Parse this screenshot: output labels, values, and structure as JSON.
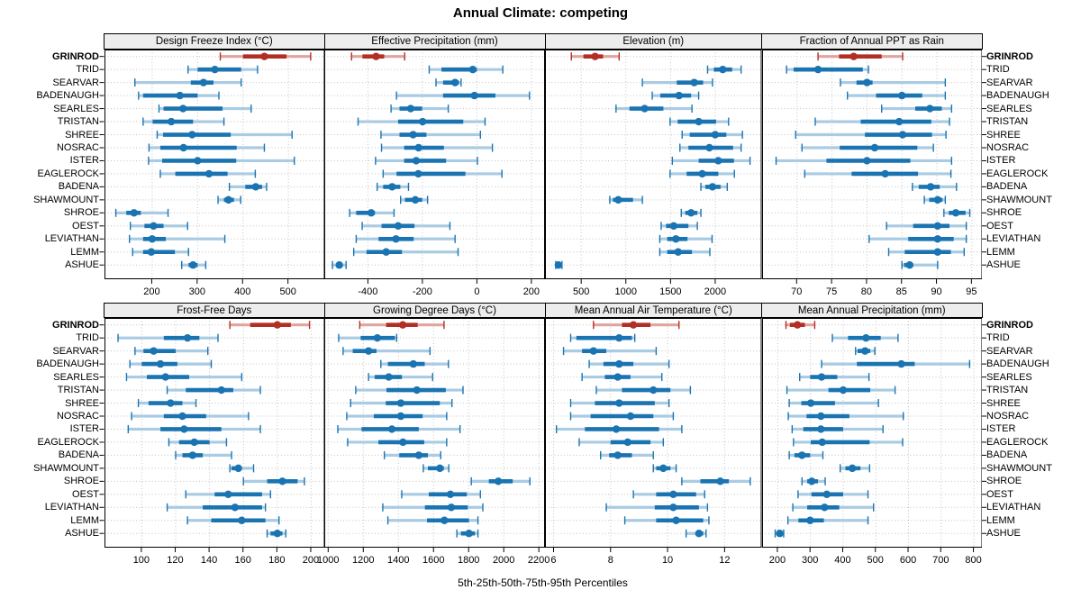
{
  "title": "Annual Climate: competing",
  "xlabel": "5th-25th-50th-75th-95th Percentiles",
  "colors": {
    "highlight": "#b22f26",
    "highlight_light": "#e0a49e",
    "normal": "#1a74b2",
    "normal_light": "#a9cbe3",
    "grid": "#c4c4c4",
    "strip_bg": "#ededed",
    "border": "#000000"
  },
  "chart_data": {
    "type": "dotplot_percentiles",
    "layout": "2x4 lattice, dotted grid, no legend, station labels on both sides",
    "percentiles": [
      5,
      25,
      50,
      75,
      95
    ],
    "highlight_station": "GRINROD",
    "stations": [
      "GRINROD",
      "TRID",
      "SEARVAR",
      "BADENAUGH",
      "SEARLES",
      "TRISTAN",
      "SHREE",
      "NOSRAC",
      "ISTER",
      "EAGLEROCK",
      "BADENA",
      "SHAWMOUNT",
      "SHROE",
      "OEST",
      "LEVIATHAN",
      "LEMM",
      "ASHUE"
    ],
    "panels": [
      {
        "title": "Design Freeze Index (°C)",
        "xlim": [
          95,
          580
        ],
        "ticks": [
          200,
          300,
          400,
          500
        ],
        "values": [
          [
            350,
            400,
            447,
            496,
            549
          ],
          [
            279,
            300,
            338,
            396,
            432
          ],
          [
            162,
            285,
            313,
            335,
            396
          ],
          [
            170,
            180,
            261,
            300,
            347
          ],
          [
            215,
            225,
            268,
            355,
            418
          ],
          [
            180,
            201,
            242,
            290,
            358
          ],
          [
            211,
            224,
            288,
            373,
            508
          ],
          [
            193,
            218,
            269,
            386,
            447
          ],
          [
            192,
            222,
            300,
            385,
            513
          ],
          [
            218,
            251,
            325,
            366,
            427
          ],
          [
            370,
            405,
            428,
            442,
            452
          ],
          [
            345,
            358,
            368,
            380,
            395
          ],
          [
            120,
            143,
            160,
            175,
            235
          ],
          [
            152,
            183,
            203,
            225,
            278
          ],
          [
            150,
            180,
            200,
            230,
            360
          ],
          [
            157,
            180,
            198,
            250,
            280
          ],
          [
            265,
            280,
            290,
            300,
            318
          ]
        ]
      },
      {
        "title": "Effective Precipitation (mm)",
        "xlim": [
          -560,
          250
        ],
        "ticks": [
          -400,
          -200,
          0,
          200
        ],
        "values": [
          [
            -460,
            -420,
            -370,
            -340,
            -265
          ],
          [
            -175,
            -130,
            -15,
            0,
            95
          ],
          [
            -150,
            -124,
            -80,
            -66,
            -58
          ],
          [
            -295,
            -124,
            -9,
            68,
            193
          ],
          [
            -315,
            -284,
            -243,
            -201,
            -105
          ],
          [
            -436,
            -289,
            -199,
            -50,
            30
          ],
          [
            -352,
            -284,
            -234,
            -185,
            13
          ],
          [
            -350,
            -267,
            -214,
            -121,
            57
          ],
          [
            -372,
            -267,
            -223,
            -113,
            2
          ],
          [
            -344,
            -295,
            -215,
            -42,
            92
          ],
          [
            -366,
            -344,
            -311,
            -281,
            -251
          ],
          [
            -280,
            -264,
            -226,
            -201,
            -181
          ],
          [
            -467,
            -443,
            -388,
            -374,
            -304
          ],
          [
            -421,
            -350,
            -289,
            -229,
            -99
          ],
          [
            -443,
            -361,
            -297,
            -232,
            -80
          ],
          [
            -452,
            -405,
            -333,
            -275,
            -69
          ],
          [
            -530,
            -515,
            -505,
            -495,
            -480
          ]
        ]
      },
      {
        "title": "Elevation (m)",
        "xlim": [
          95,
          2520
        ],
        "ticks": [
          500,
          1000,
          1500,
          2000
        ],
        "values": [
          [
            390,
            525,
            655,
            745,
            925
          ],
          [
            1915,
            1985,
            2085,
            2190,
            2290
          ],
          [
            1185,
            1570,
            1765,
            1865,
            1970
          ],
          [
            1295,
            1385,
            1595,
            1730,
            1815
          ],
          [
            890,
            1040,
            1210,
            1420,
            1740
          ],
          [
            1495,
            1580,
            1815,
            2010,
            2150
          ],
          [
            1630,
            1715,
            2000,
            2125,
            2305
          ],
          [
            1605,
            1700,
            1935,
            2200,
            2290
          ],
          [
            1520,
            1815,
            2035,
            2210,
            2390
          ],
          [
            1495,
            1680,
            1855,
            2035,
            2215
          ],
          [
            1840,
            1890,
            1970,
            2060,
            2135
          ],
          [
            820,
            855,
            915,
            1080,
            1185
          ],
          [
            1620,
            1665,
            1730,
            1800,
            1840
          ],
          [
            1395,
            1450,
            1535,
            1700,
            1800
          ],
          [
            1380,
            1463,
            1560,
            1690,
            1965
          ],
          [
            1380,
            1463,
            1585,
            1740,
            1940
          ],
          [
            215,
            230,
            245,
            262,
            285
          ]
        ]
      },
      {
        "title": "Fraction of Annual PPT as Rain",
        "xlim": [
          65,
          96.5
        ],
        "ticks": [
          70,
          75,
          80,
          85,
          90,
          95
        ],
        "values": [
          [
            73.0,
            76.0,
            78.1,
            82.1,
            85.1
          ],
          [
            68.5,
            69.5,
            73.0,
            79.4,
            80.2
          ],
          [
            76.2,
            78.5,
            80.0,
            80.8,
            91.2
          ],
          [
            77.2,
            81.3,
            85.0,
            87.9,
            91.2
          ],
          [
            82.1,
            86.9,
            89.0,
            90.7,
            92.1
          ],
          [
            72.6,
            79.1,
            84.6,
            89.2,
            91.8
          ],
          [
            69.8,
            79.7,
            85.1,
            89.3,
            91.3
          ],
          [
            70.7,
            76.1,
            81.1,
            87.2,
            89.5
          ],
          [
            67.0,
            74.2,
            80.0,
            86.2,
            92.1
          ],
          [
            71.1,
            77.8,
            82.6,
            87.3,
            92.0
          ],
          [
            86.5,
            87.4,
            89.1,
            90.4,
            92.8
          ],
          [
            88.2,
            88.9,
            90.1,
            90.8,
            91.2
          ],
          [
            91.0,
            91.7,
            92.7,
            94.1,
            94.7
          ],
          [
            82.8,
            86.6,
            90.1,
            91.8,
            94.2
          ],
          [
            80.3,
            85.9,
            90.1,
            92.4,
            94.2
          ],
          [
            83.1,
            85.4,
            90.1,
            92.0,
            93.9
          ],
          [
            85.0,
            85.3,
            86.1,
            86.6,
            90.1
          ]
        ]
      },
      {
        "title": "Frost-Free Days",
        "xlim": [
          78,
          208
        ],
        "ticks": [
          100,
          120,
          140,
          160,
          180,
          200
        ],
        "values": [
          [
            152,
            164,
            180,
            188,
            199
          ],
          [
            86,
            113,
            127,
            134,
            145
          ],
          [
            96,
            101,
            107,
            120,
            139
          ],
          [
            93,
            100,
            111,
            121,
            141
          ],
          [
            91,
            103,
            114,
            128,
            159
          ],
          [
            115,
            126,
            147,
            154,
            170
          ],
          [
            98,
            104,
            117,
            124,
            132
          ],
          [
            94,
            113,
            124,
            138,
            163
          ],
          [
            92,
            111,
            125,
            147,
            170
          ],
          [
            116,
            122,
            131,
            140,
            150
          ],
          [
            120,
            124,
            130,
            136,
            153
          ],
          [
            152,
            153,
            157,
            159,
            166
          ],
          [
            160,
            174,
            183,
            192,
            196
          ],
          [
            126,
            143,
            151,
            171,
            176
          ],
          [
            115,
            136,
            155,
            171,
            173
          ],
          [
            127,
            141,
            159,
            173,
            181
          ],
          [
            174,
            176,
            180,
            183,
            185
          ]
        ]
      },
      {
        "title": "Growing Degree Days (°C)",
        "xlim": [
          978,
          2235
        ],
        "ticks": [
          1000,
          1200,
          1400,
          1600,
          1800,
          2000,
          2200
        ],
        "values": [
          [
            1180,
            1330,
            1425,
            1510,
            1660
          ],
          [
            1060,
            1185,
            1280,
            1380,
            1390
          ],
          [
            1085,
            1140,
            1230,
            1275,
            1580
          ],
          [
            1300,
            1340,
            1485,
            1550,
            1685
          ],
          [
            1230,
            1265,
            1345,
            1420,
            1595
          ],
          [
            1157,
            1332,
            1505,
            1670,
            1768
          ],
          [
            1128,
            1328,
            1414,
            1636,
            1705
          ],
          [
            1106,
            1260,
            1414,
            1538,
            1675
          ],
          [
            1055,
            1190,
            1363,
            1516,
            1751
          ],
          [
            1111,
            1286,
            1426,
            1547,
            1675
          ],
          [
            1320,
            1405,
            1516,
            1568,
            1641
          ],
          [
            1542,
            1568,
            1636,
            1659,
            1687
          ],
          [
            1815,
            1915,
            1969,
            2051,
            2149
          ],
          [
            1419,
            1573,
            1696,
            1790,
            1867
          ],
          [
            1311,
            1551,
            1701,
            1795,
            1881
          ],
          [
            1340,
            1563,
            1662,
            1802,
            1853
          ],
          [
            1733,
            1756,
            1802,
            1836,
            1853
          ]
        ]
      },
      {
        "title": "Mean Annual Air Temperature (°C)",
        "xlim": [
          5.7,
          13.3
        ],
        "ticks": [
          6,
          8,
          10,
          12
        ],
        "values": [
          [
            7.4,
            8.4,
            8.8,
            9.4,
            10.4
          ],
          [
            6.6,
            6.8,
            8.3,
            8.75,
            8.85
          ],
          [
            6.35,
            7.0,
            7.4,
            7.85,
            9.6
          ],
          [
            7.25,
            7.75,
            8.3,
            8.8,
            10.05
          ],
          [
            7.0,
            7.8,
            8.25,
            8.7,
            9.8
          ],
          [
            7.5,
            8.4,
            9.5,
            10.1,
            10.8
          ],
          [
            6.6,
            7.45,
            8.3,
            9.55,
            10.05
          ],
          [
            6.6,
            7.3,
            8.7,
            9.5,
            10.2
          ],
          [
            6.1,
            7.1,
            8.2,
            9.7,
            10.5
          ],
          [
            6.9,
            8.0,
            8.6,
            9.4,
            9.85
          ],
          [
            7.65,
            7.95,
            8.25,
            8.75,
            9.5
          ],
          [
            9.5,
            9.6,
            9.85,
            10.1,
            10.3
          ],
          [
            10.5,
            11.15,
            11.85,
            12.15,
            12.9
          ],
          [
            8.8,
            9.6,
            10.2,
            11.0,
            11.3
          ],
          [
            7.85,
            9.55,
            10.2,
            11.1,
            11.4
          ],
          [
            8.5,
            9.6,
            10.3,
            11.25,
            11.45
          ],
          [
            10.65,
            11.0,
            11.1,
            11.25,
            11.35
          ]
        ]
      },
      {
        "title": "Mean Annual Precipitation (mm)",
        "xlim": [
          152,
          826
        ],
        "ticks": [
          200,
          300,
          400,
          500,
          600,
          700,
          800
        ],
        "values": [
          [
            225,
            237,
            260,
            283,
            313
          ],
          [
            367,
            415,
            470,
            515,
            568
          ],
          [
            438,
            444,
            467,
            483,
            497
          ],
          [
            334,
            442,
            578,
            619,
            787
          ],
          [
            267,
            299,
            334,
            382,
            479
          ],
          [
            228,
            355,
            400,
            483,
            559
          ],
          [
            235,
            272,
            301,
            375,
            508
          ],
          [
            232,
            288,
            332,
            419,
            584
          ],
          [
            244,
            278,
            332,
            400,
            522
          ],
          [
            248,
            301,
            336,
            481,
            582
          ],
          [
            235,
            251,
            274,
            299,
            338
          ],
          [
            391,
            407,
            428,
            453,
            481
          ],
          [
            274,
            290,
            304,
            323,
            345
          ],
          [
            262,
            303,
            350,
            400,
            476
          ],
          [
            246,
            290,
            343,
            388,
            493
          ],
          [
            231,
            263,
            299,
            341,
            476
          ],
          [
            192,
            200,
            206,
            212,
            218
          ]
        ]
      }
    ]
  }
}
